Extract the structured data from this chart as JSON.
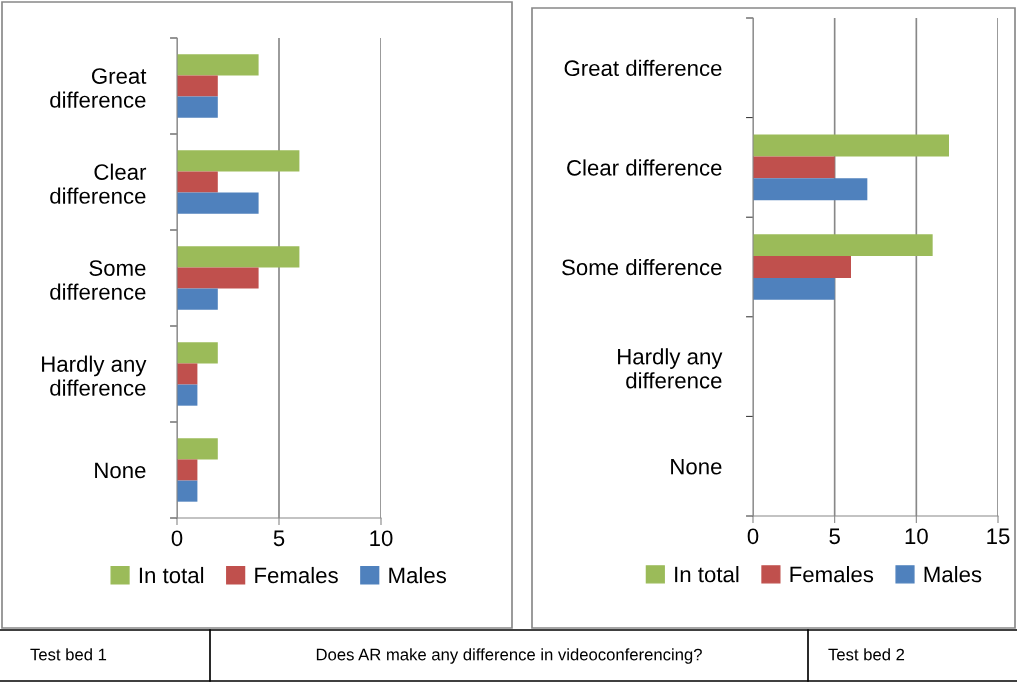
{
  "chart_data": [
    {
      "type": "bar",
      "orientation": "horizontal",
      "categories": [
        "Great difference",
        "Clear difference",
        "Some difference",
        "Hardly any difference",
        "None"
      ],
      "series": [
        {
          "name": "In total",
          "color": "#9bbb59",
          "values": [
            4,
            6,
            6,
            2,
            2
          ]
        },
        {
          "name": "Females",
          "color": "#c0504d",
          "values": [
            2,
            2,
            4,
            1,
            1
          ]
        },
        {
          "name": "Males",
          "color": "#4f81bd",
          "values": [
            2,
            4,
            2,
            1,
            1
          ]
        }
      ],
      "xlim": [
        0,
        10
      ],
      "xticks": [
        0,
        5,
        10
      ],
      "grid": "x",
      "legend": "bottom",
      "annotations": [
        "Test bed 1",
        "Does AR make any difference in videoconferencing?"
      ]
    },
    {
      "type": "bar",
      "orientation": "horizontal",
      "categories": [
        "Great difference",
        "Clear difference",
        "Some difference",
        "Hardly any difference",
        "None"
      ],
      "series": [
        {
          "name": "In total",
          "color": "#9bbb59",
          "values": [
            null,
            12,
            11,
            null,
            null
          ]
        },
        {
          "name": "Females",
          "color": "#c0504d",
          "values": [
            null,
            5,
            6,
            null,
            null
          ]
        },
        {
          "name": "Males",
          "color": "#4f81bd",
          "values": [
            null,
            7,
            5,
            null,
            null
          ]
        }
      ],
      "xlim": [
        0,
        15
      ],
      "xticks": [
        0,
        5,
        10,
        15
      ],
      "grid": "x",
      "legend": "bottom",
      "annotations": [
        "Test bed 2"
      ]
    }
  ]
}
